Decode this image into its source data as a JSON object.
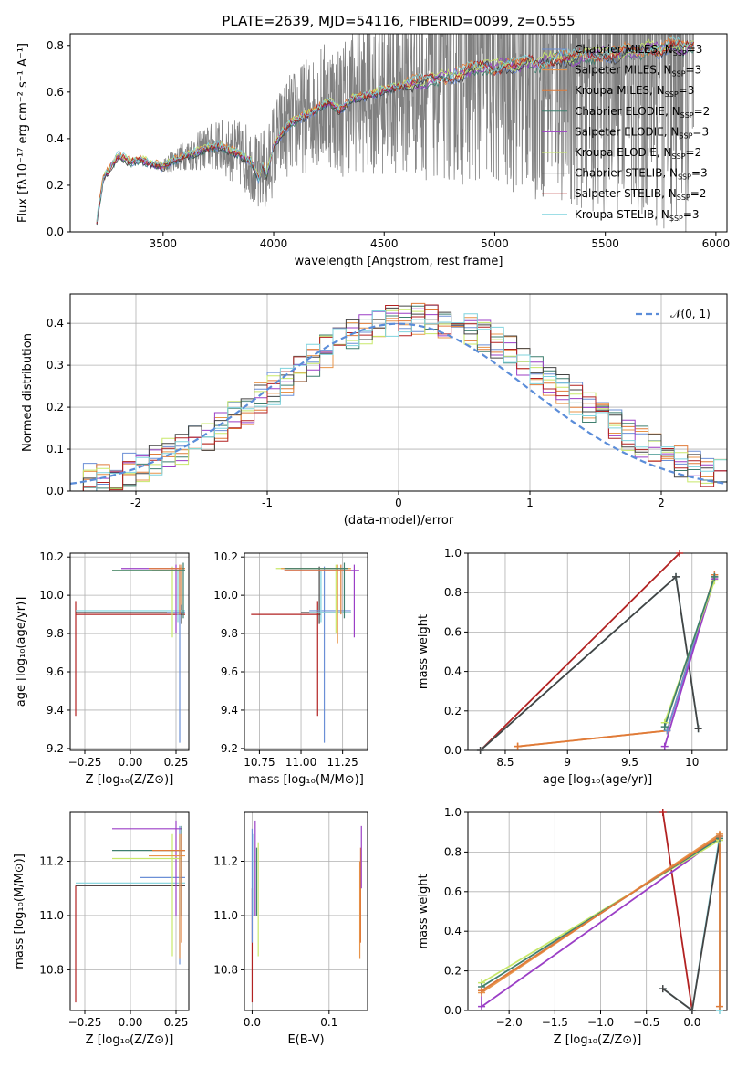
{
  "title": "PLATE=2639, MJD=54116, FIBERID=0099, z=0.555",
  "colors": {
    "Chabrier MILES": "#6b8fd6",
    "Salpeter MILES": "#e8944a",
    "Kroupa MILES": "#e07b39",
    "Chabrier ELODIE": "#3f7f6f",
    "Salpeter ELODIE": "#9b3fc6",
    "Kroupa ELODIE": "#c8e86a",
    "Chabrier STELIB": "#444444",
    "Salpeter STELIB": "#b22222",
    "Kroupa STELIB": "#7fd3dd",
    "data": "#808080",
    "normal": "#5b8dd9"
  },
  "legend_spectrum": [
    {
      "model": "Chabrier MILES",
      "nssp": "3"
    },
    {
      "model": "Salpeter MILES",
      "nssp": "3"
    },
    {
      "model": "Kroupa MILES",
      "nssp": "3"
    },
    {
      "model": "Chabrier ELODIE",
      "nssp": "2"
    },
    {
      "model": "Salpeter ELODIE",
      "nssp": "3"
    },
    {
      "model": "Kroupa ELODIE",
      "nssp": "2"
    },
    {
      "model": "Chabrier STELIB",
      "nssp": "3"
    },
    {
      "model": "Salpeter STELIB",
      "nssp": "2"
    },
    {
      "model": "Kroupa STELIB",
      "nssp": "3"
    }
  ],
  "chart_data": [
    {
      "id": "spectrum",
      "type": "line",
      "xlabel": "wavelength [Angstrom, rest frame]",
      "ylabel": "Flux [fλ10⁻¹⁷ erg cm⁻² s⁻¹ A⁻¹]",
      "xlim": [
        3080,
        6050
      ],
      "ylim": [
        0,
        0.85
      ],
      "xticks": [
        3500,
        4000,
        4500,
        5000,
        5500,
        6000
      ],
      "yticks": [
        0.0,
        0.2,
        0.4,
        0.6,
        0.8
      ],
      "grid": false,
      "legend": "top-right",
      "model_continuum": {
        "x": [
          3200,
          3230,
          3300,
          3350,
          3400,
          3450,
          3500,
          3550,
          3600,
          3650,
          3700,
          3750,
          3800,
          3850,
          3900,
          3933,
          3950,
          3968,
          4000,
          4050,
          4100,
          4150,
          4200,
          4250,
          4300,
          4350,
          4400,
          4450,
          4500,
          4550,
          4600,
          4650,
          4700,
          4750,
          4800,
          4850,
          4900,
          4950,
          5000,
          5050,
          5100,
          5150,
          5200,
          5250,
          5300,
          5350,
          5400,
          5450,
          5500,
          5550,
          5600,
          5650,
          5700,
          5750,
          5800,
          5850,
          5900
        ],
        "y": [
          0.05,
          0.23,
          0.33,
          0.3,
          0.31,
          0.29,
          0.28,
          0.31,
          0.33,
          0.34,
          0.36,
          0.37,
          0.35,
          0.33,
          0.3,
          0.22,
          0.29,
          0.24,
          0.37,
          0.44,
          0.48,
          0.5,
          0.53,
          0.56,
          0.52,
          0.57,
          0.58,
          0.59,
          0.61,
          0.62,
          0.63,
          0.64,
          0.65,
          0.66,
          0.67,
          0.68,
          0.7,
          0.71,
          0.7,
          0.72,
          0.71,
          0.73,
          0.72,
          0.74,
          0.75,
          0.74,
          0.76,
          0.75,
          0.77,
          0.76,
          0.78,
          0.77,
          0.79,
          0.78,
          0.8,
          0.79,
          0.8
        ]
      },
      "data_noise_start": 3500,
      "data_noise_scale": 0.0006
    },
    {
      "id": "residuals",
      "type": "line",
      "xlabel": "(data-model)/error",
      "ylabel": "Normed distribution",
      "xlim": [
        -2.5,
        2.5
      ],
      "ylim": [
        0,
        0.47
      ],
      "xticks": [
        -2,
        -1,
        0,
        1,
        2
      ],
      "yticks": [
        0.0,
        0.1,
        0.2,
        0.3,
        0.4
      ],
      "grid": true,
      "legend": "top-right",
      "series": [
        {
          "name": "𝒩(0, 1)",
          "mu": 0,
          "sigma": 1
        }
      ],
      "histogram_bin_width": 0.1
    },
    {
      "id": "z-age",
      "type": "scatter",
      "xlabel": "Z [log₁₀(Z/Z⊙)]",
      "ylabel": "age  [log₁₀(age/yr)]",
      "xlim": [
        -0.33,
        0.32
      ],
      "ylim": [
        9.19,
        10.22
      ],
      "xticks": [
        -0.25,
        0.0,
        0.25
      ],
      "xticklabels": [
        "−0.25",
        "0.00",
        "0.25"
      ],
      "yticks": [
        9.2,
        9.4,
        9.6,
        9.8,
        10.0,
        10.2
      ],
      "grid": true
    },
    {
      "id": "mass-age",
      "type": "scatter",
      "xlabel": "mass [log₁₀(M/M⊙)]",
      "ylabel": "",
      "xlim": [
        10.66,
        11.4
      ],
      "ylim": [
        9.19,
        10.22
      ],
      "xticks": [
        10.75,
        11.0,
        11.25
      ],
      "xticklabels": [
        "10.75",
        "11.00",
        "11.25"
      ],
      "yticks": [
        9.2,
        9.4,
        9.6,
        9.8,
        10.0,
        10.2
      ],
      "grid": true
    },
    {
      "id": "age-weight",
      "type": "line",
      "xlabel": "age  [log₁₀(age/yr)]",
      "ylabel": "mass weight",
      "xlim": [
        8.2,
        10.28
      ],
      "ylim": [
        0,
        1
      ],
      "xticks": [
        8.5,
        9.0,
        9.5,
        10.0
      ],
      "yticks": [
        0.0,
        0.2,
        0.4,
        0.6,
        0.8,
        1.0
      ],
      "grid": true,
      "series": [
        {
          "model": "Salpeter STELIB",
          "x": [
            8.3,
            9.9
          ],
          "y": [
            0.0,
            1.0
          ]
        },
        {
          "model": "Kroupa STELIB",
          "x": [
            8.3,
            9.87,
            10.05
          ],
          "y": [
            0.0,
            0.88,
            0.11
          ]
        },
        {
          "model": "Chabrier STELIB",
          "x": [
            8.3,
            9.87,
            10.05
          ],
          "y": [
            0.0,
            0.88,
            0.11
          ]
        },
        {
          "model": "Salpeter MILES",
          "x": [
            8.6,
            9.8,
            10.18
          ],
          "y": [
            0.02,
            0.1,
            0.88
          ]
        },
        {
          "model": "Kroupa MILES",
          "x": [
            8.6,
            9.8,
            10.18
          ],
          "y": [
            0.02,
            0.1,
            0.89
          ]
        },
        {
          "model": "Chabrier MILES",
          "x": [
            9.8,
            10.18
          ],
          "y": [
            0.1,
            0.88
          ]
        },
        {
          "model": "Salpeter ELODIE",
          "x": [
            9.78,
            10.18
          ],
          "y": [
            0.02,
            0.87
          ]
        },
        {
          "model": "Kroupa ELODIE",
          "x": [
            9.78,
            10.18
          ],
          "y": [
            0.14,
            0.86
          ]
        },
        {
          "model": "Chabrier ELODIE",
          "x": [
            9.78,
            10.18
          ],
          "y": [
            0.12,
            0.88
          ]
        }
      ]
    },
    {
      "id": "z-mass",
      "type": "scatter",
      "xlabel": "Z [log₁₀(Z/Z⊙)]",
      "ylabel": "mass [log₁₀(M/M⊙)]",
      "xlim": [
        -0.33,
        0.32
      ],
      "ylim": [
        10.65,
        11.38
      ],
      "xticks": [
        -0.25,
        0.0,
        0.25
      ],
      "xticklabels": [
        "−0.25",
        "0.00",
        "0.25"
      ],
      "yticks": [
        10.8,
        11.0,
        11.2
      ],
      "yticklabels": [
        "10.8",
        "11.0",
        "11.2"
      ],
      "grid": true
    },
    {
      "id": "ebv-mass",
      "type": "scatter",
      "xlabel": "E(B-V)",
      "ylabel": "",
      "xlim": [
        -0.01,
        0.15
      ],
      "ylim": [
        10.65,
        11.38
      ],
      "xticks": [
        0.0,
        0.1
      ],
      "xticklabels": [
        "0.0",
        "0.1"
      ],
      "yticks": [
        10.8,
        11.0,
        11.2
      ],
      "yticklabels": [
        "10.8",
        "11.0",
        "11.2"
      ],
      "grid": true,
      "segments": [
        {
          "model": "Salpeter STELIB",
          "x": 0.0,
          "y0": 10.68,
          "y1": 11.1
        },
        {
          "model": "Chabrier MILES",
          "x": 0.0,
          "y0": 10.9,
          "y1": 11.32
        },
        {
          "model": "Kroupa ELODIE",
          "x": 0.008,
          "y0": 10.85,
          "y1": 11.27
        },
        {
          "model": "Salpeter ELODIE",
          "x": 0.004,
          "y0": 11.0,
          "y1": 11.35
        },
        {
          "model": "Kroupa STELIB",
          "x": 0.002,
          "y0": 11.0,
          "y1": 11.3
        },
        {
          "model": "Chabrier ELODIE",
          "x": 0.006,
          "y0": 11.0,
          "y1": 11.25
        },
        {
          "model": "Salpeter MILES",
          "x": 0.14,
          "y0": 10.84,
          "y1": 11.2
        },
        {
          "model": "Kroupa MILES",
          "x": 0.141,
          "y0": 10.9,
          "y1": 11.25
        },
        {
          "model": "Salpeter ELODIE",
          "x": 0.142,
          "y0": 11.1,
          "y1": 11.33
        }
      ]
    },
    {
      "id": "z-weight",
      "type": "line",
      "xlabel": "Z [log₁₀(Z/Z⊙)]",
      "ylabel": "mass weight",
      "xlim": [
        -2.45,
        0.38
      ],
      "ylim": [
        0,
        1
      ],
      "xticks": [
        -2.0,
        -1.5,
        -1.0,
        -0.5,
        0.0
      ],
      "xticklabels": [
        "−2.0",
        "−1.5",
        "−1.0",
        "−0.5",
        "0.0"
      ],
      "yticks": [
        0.0,
        0.2,
        0.4,
        0.6,
        0.8,
        1.0
      ],
      "grid": true,
      "series": [
        {
          "model": "Salpeter STELIB",
          "x": [
            -0.32,
            0.0
          ],
          "y": [
            1.0,
            0.0
          ]
        },
        {
          "model": "Kroupa STELIB",
          "x": [
            -0.32,
            0.0,
            0.3,
            0.3
          ],
          "y": [
            0.11,
            0.0,
            0.88,
            0.0
          ]
        },
        {
          "model": "Chabrier STELIB",
          "x": [
            -0.32,
            0.0,
            0.3
          ],
          "y": [
            0.11,
            0.0,
            0.86
          ]
        },
        {
          "model": "Salpeter ELODIE",
          "x": [
            -2.3,
            -2.3,
            0.3
          ],
          "y": [
            0.1,
            0.02,
            0.87
          ]
        },
        {
          "model": "Kroupa ELODIE",
          "x": [
            -2.3,
            0.3
          ],
          "y": [
            0.14,
            0.86
          ]
        },
        {
          "model": "Chabrier ELODIE",
          "x": [
            -2.3,
            0.3
          ],
          "y": [
            0.12,
            0.87
          ]
        },
        {
          "model": "Chabrier MILES",
          "x": [
            -2.3,
            0.3
          ],
          "y": [
            0.1,
            0.88
          ]
        },
        {
          "model": "Salpeter MILES",
          "x": [
            -2.3,
            0.3
          ],
          "y": [
            0.09,
            0.89
          ]
        },
        {
          "model": "Kroupa MILES",
          "x": [
            -2.3,
            0.3,
            0.3
          ],
          "y": [
            0.1,
            0.88,
            0.02
          ]
        }
      ]
    }
  ]
}
